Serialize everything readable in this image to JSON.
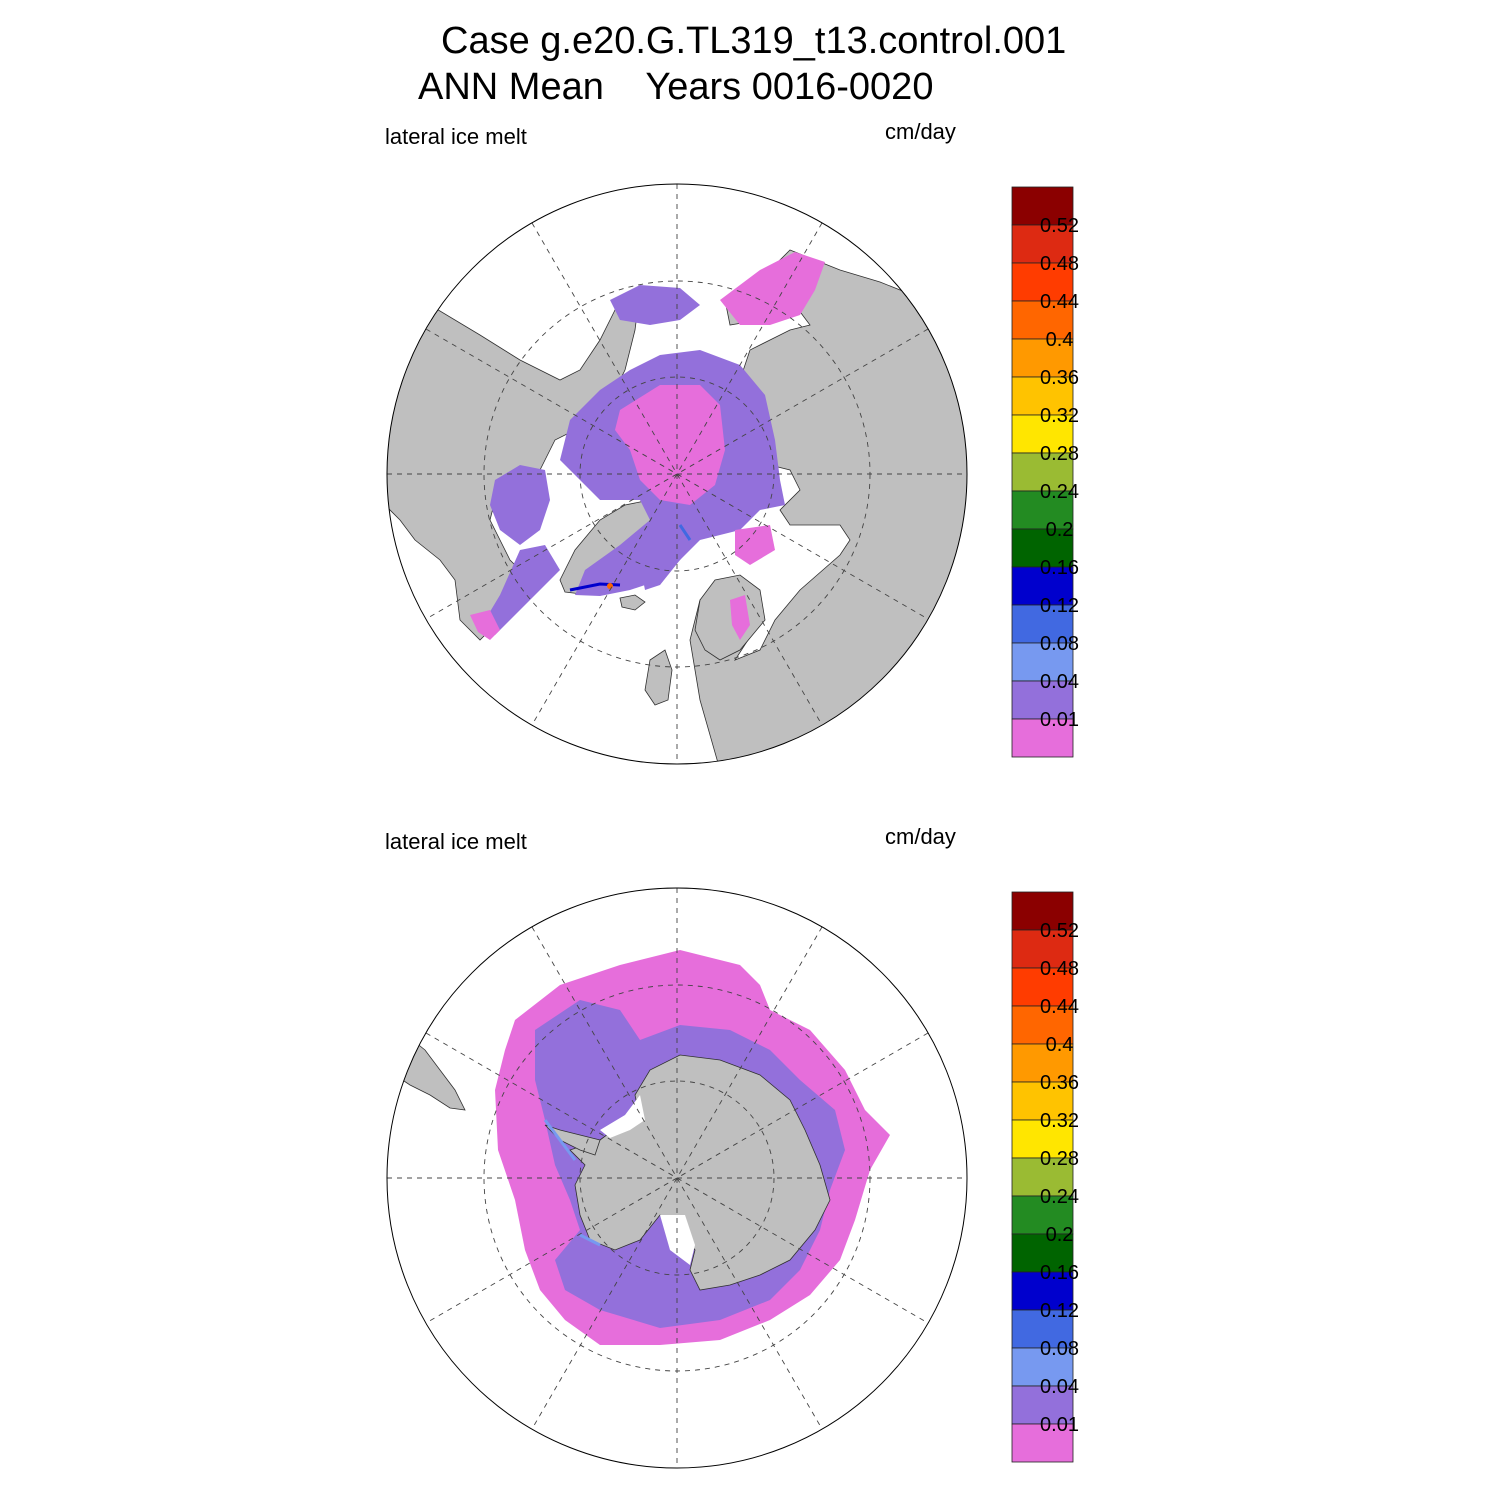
{
  "title": {
    "line1": "Case g.e20.G.TL319_t13.control.001",
    "line2": "ANN Mean    Years 0016-0020"
  },
  "panels": [
    {
      "id": "north",
      "left_label": "lateral ice melt",
      "right_label": "cm/day"
    },
    {
      "id": "south",
      "left_label": "lateral ice melt",
      "right_label": "cm/day"
    }
  ],
  "colorbar": {
    "labels": [
      "0.52",
      "0.48",
      "0.44",
      "0.4",
      "0.36",
      "0.32",
      "0.28",
      "0.24",
      "0.2",
      "0.16",
      "0.12",
      "0.08",
      "0.04",
      "0.01"
    ],
    "colors": [
      "#8b0000",
      "#dd2a12",
      "#ff3c00",
      "#ff6600",
      "#ff9900",
      "#ffc300",
      "#ffe600",
      "#9abb33",
      "#238b22",
      "#006400",
      "#0000cd",
      "#4169e1",
      "#7799f0",
      "#9370db",
      "#e66edb"
    ]
  },
  "colors": {
    "land": "#bfbfbf",
    "ocean": "#ffffff",
    "ice_low": "#e66edb",
    "ice_mid": "#9370db",
    "ice_blue": "#7799f0"
  }
}
